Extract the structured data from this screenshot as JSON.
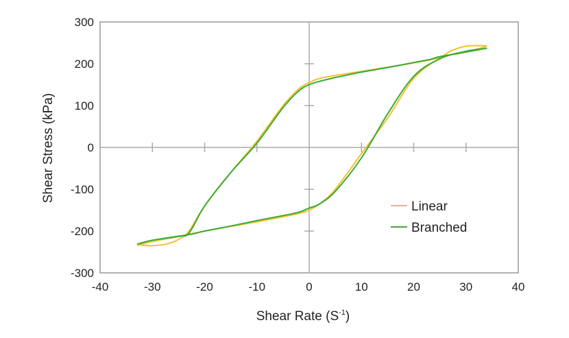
{
  "chart_data": {
    "type": "line",
    "title": "",
    "xlabel": "Shear Rate (S",
    "xlabel_superscript": "-1",
    "xlabel_close": ")",
    "ylabel": "Shear Stress (kPa)",
    "xlim": [
      -40,
      40
    ],
    "ylim": [
      -300,
      300
    ],
    "xticks": [
      -40,
      -30,
      -20,
      -10,
      0,
      10,
      20,
      30,
      40
    ],
    "yticks": [
      -300,
      -200,
      -100,
      0,
      100,
      200,
      300
    ],
    "grid": false,
    "legend_position": "lower-right",
    "series": [
      {
        "name": "Linear",
        "color": "#f2c12e",
        "x": [
          -32.5,
          -30,
          -27,
          -25,
          -23,
          -20,
          -15,
          -10,
          -5,
          -2,
          0,
          2,
          5,
          10,
          15,
          20,
          25,
          27,
          30,
          33.5,
          33.5,
          30,
          25,
          20,
          15,
          10,
          5,
          2,
          0,
          -2,
          -5,
          -10,
          -15,
          -20,
          -22,
          -25,
          -30,
          -32.5
        ],
        "y": [
          -233,
          -235,
          -230,
          -220,
          -200,
          -140,
          -60,
          15,
          100,
          140,
          155,
          165,
          172,
          182,
          192,
          202,
          215,
          230,
          242,
          243,
          240,
          228,
          212,
          165,
          70,
          -15,
          -100,
          -135,
          -150,
          -158,
          -166,
          -178,
          -189,
          -200,
          -205,
          -213,
          -225,
          -233
        ]
      },
      {
        "name": "Branched",
        "color": "#3aaa35",
        "x": [
          -32.5,
          -30,
          -25,
          -23,
          -20,
          -15,
          -10,
          -5,
          -2,
          0,
          2,
          5,
          10,
          15,
          20,
          23,
          25,
          30,
          33.5,
          33.5,
          30,
          25,
          20,
          15,
          10,
          5,
          2,
          0,
          -2,
          -5,
          -10,
          -15,
          -20,
          -22,
          -25,
          -30,
          -32.5
        ],
        "y": [
          -230,
          -222,
          -212,
          -205,
          -140,
          -60,
          10,
          95,
          135,
          150,
          158,
          167,
          180,
          191,
          203,
          210,
          217,
          228,
          236,
          236,
          230,
          212,
          170,
          80,
          -25,
          -105,
          -135,
          -145,
          -155,
          -163,
          -175,
          -188,
          -200,
          -206,
          -213,
          -222,
          -230
        ]
      }
    ]
  }
}
